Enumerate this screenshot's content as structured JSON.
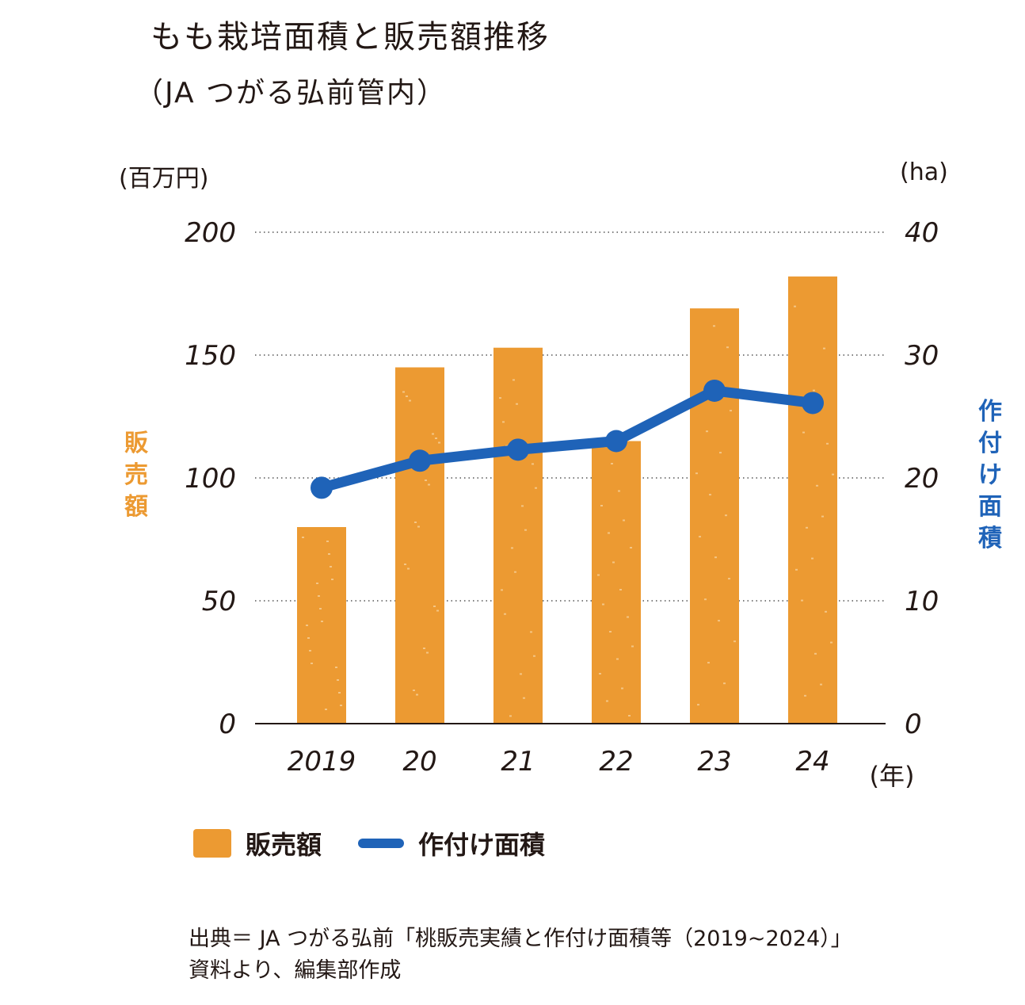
{
  "chart_data": {
    "type": "bar+line",
    "title": "もも栽培面積と販売額推移",
    "subtitle": "（JA つがる弘前管内）",
    "categories": [
      "2019",
      "20",
      "21",
      "22",
      "23",
      "24"
    ],
    "x_unit": "(年)",
    "y_left": {
      "unit": "(百万円)",
      "label": "販売額",
      "ylim": [
        0,
        200
      ],
      "ticks": [
        "0",
        "50",
        "100",
        "150",
        "200"
      ]
    },
    "y_right": {
      "unit": "(ha)",
      "label": "作付け面積",
      "ylim": [
        0,
        40
      ],
      "ticks": [
        "0",
        "10",
        "20",
        "30",
        "40"
      ]
    },
    "series": [
      {
        "name": "販売額",
        "type": "bar",
        "axis": "left",
        "color": "#ec9a32",
        "values": [
          80,
          145,
          153,
          115,
          169,
          182
        ]
      },
      {
        "name": "作付け面積",
        "type": "line",
        "axis": "right",
        "color": "#1f63b8",
        "values": [
          19.2,
          21.4,
          22.3,
          23.0,
          27.1,
          26.1
        ]
      }
    ],
    "grid": "horizontal dotted"
  },
  "legend": {
    "bar_label": "販売額",
    "line_label": "作付け面積"
  },
  "source": {
    "line1": "出典＝ JA つがる弘前「桃販売実績と作付け面積等（2019~2024）」",
    "line2": "資料より、編集部作成"
  }
}
